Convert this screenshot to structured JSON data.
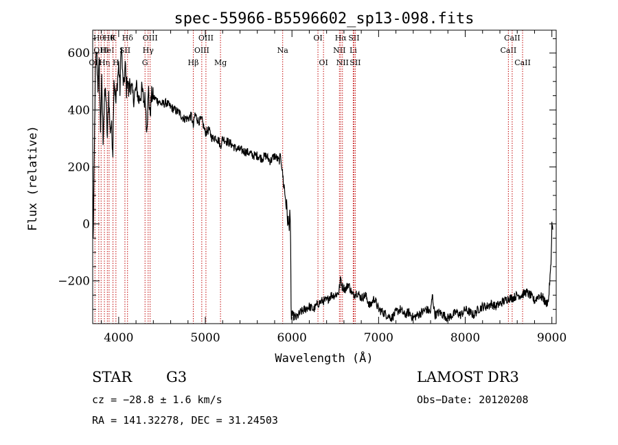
{
  "chart_data": {
    "type": "line",
    "title": "spec-55966-B5596602_sp13-098.fits",
    "xlabel": "Wavelength (Å)",
    "ylabel": "Flux (relative)",
    "xlim": [
      3700,
      9050
    ],
    "ylim": [
      -350,
      680
    ],
    "x_ticks": [
      4000,
      5000,
      6000,
      7000,
      8000,
      9000
    ],
    "y_ticks": [
      -200,
      0,
      200,
      400,
      600
    ],
    "series": [
      {
        "name": "flux",
        "x": [
          3700,
          3705,
          3715,
          3730,
          3745,
          3760,
          3775,
          3790,
          3805,
          3820,
          3835,
          3850,
          3870,
          3885,
          3900,
          3915,
          3933,
          3945,
          3968,
          3985,
          4000,
          4015,
          4030,
          4045,
          4060,
          4075,
          4090,
          4102,
          4115,
          4130,
          4150,
          4170,
          4190,
          4210,
          4230,
          4250,
          4270,
          4290,
          4310,
          4318,
          4330,
          4345,
          4360,
          4380,
          4420,
          4460,
          4500,
          4550,
          4600,
          4650,
          4700,
          4750,
          4800,
          4840,
          4861,
          4880,
          4920,
          4960,
          5000,
          5040,
          5080,
          5120,
          5160,
          5172,
          5200,
          5250,
          5300,
          5350,
          5400,
          5450,
          5500,
          5550,
          5600,
          5650,
          5700,
          5750,
          5800,
          5850,
          5870,
          5890,
          5910,
          5930,
          5950,
          5965,
          5975,
          5980,
          5985,
          5990,
          6000,
          6050,
          6100,
          6150,
          6200,
          6250,
          6300,
          6350,
          6400,
          6450,
          6500,
          6540,
          6563,
          6580,
          6620,
          6650,
          6700,
          6750,
          6800,
          6850,
          6900,
          6950,
          7000,
          7050,
          7100,
          7150,
          7200,
          7250,
          7300,
          7350,
          7400,
          7450,
          7500,
          7550,
          7600,
          7620,
          7650,
          7700,
          7750,
          7800,
          7850,
          7900,
          7950,
          8000,
          8050,
          8100,
          8150,
          8200,
          8250,
          8300,
          8350,
          8400,
          8450,
          8500,
          8550,
          8600,
          8650,
          8700,
          8750,
          8800,
          8850,
          8900,
          8930,
          8960,
          8990,
          9000,
          9010
        ],
        "values": [
          200,
          -60,
          150,
          520,
          610,
          480,
          560,
          330,
          500,
          300,
          430,
          470,
          300,
          460,
          330,
          350,
          260,
          520,
          420,
          500,
          560,
          470,
          640,
          520,
          480,
          560,
          470,
          520,
          460,
          500,
          470,
          440,
          460,
          480,
          430,
          450,
          470,
          430,
          440,
          340,
          370,
          470,
          380,
          450,
          440,
          430,
          420,
          425,
          410,
          400,
          390,
          370,
          370,
          380,
          340,
          385,
          360,
          365,
          320,
          330,
          300,
          305,
          290,
          270,
          300,
          290,
          280,
          265,
          260,
          255,
          250,
          240,
          240,
          230,
          240,
          220,
          240,
          220,
          240,
          180,
          130,
          80,
          20,
          -10,
          50,
          -20,
          -100,
          -310,
          -320,
          -330,
          -310,
          -300,
          -290,
          -300,
          -280,
          -270,
          -270,
          -250,
          -250,
          -240,
          -190,
          -220,
          -230,
          -210,
          -250,
          -240,
          -260,
          -250,
          -290,
          -260,
          -300,
          -310,
          -320,
          -330,
          -310,
          -300,
          -320,
          -310,
          -330,
          -320,
          -310,
          -300,
          -310,
          -250,
          -320,
          -310,
          -320,
          -330,
          -320,
          -310,
          -320,
          -300,
          -310,
          -320,
          -300,
          -290,
          -290,
          -280,
          -290,
          -280,
          -270,
          -260,
          -260,
          -250,
          -250,
          -240,
          -250,
          -270,
          -250,
          -260,
          -280,
          -270,
          -140,
          0,
          -20
        ]
      }
    ],
    "line_markers": [
      {
        "wave": 3726,
        "label": "OII",
        "row": 3
      },
      {
        "wave": 3770,
        "label": "Hθ",
        "row": 1
      },
      {
        "wave": 3797,
        "label": "OIII",
        "row": 2
      },
      {
        "wave": 3835,
        "label": "Hη",
        "row": 3
      },
      {
        "wave": 3869,
        "label": "HeI",
        "row": 2
      },
      {
        "wave": 3889,
        "label": "Hθ",
        "row": 1
      },
      {
        "wave": 3934,
        "label": "K",
        "row": 1
      },
      {
        "wave": 3968,
        "label": "H",
        "row": 3
      },
      {
        "wave": 4072,
        "label": "SII",
        "row": 2
      },
      {
        "wave": 4102,
        "label": "Hδ",
        "row": 1
      },
      {
        "wave": 4304,
        "label": "G",
        "row": 3
      },
      {
        "wave": 4340,
        "label": "Hγ",
        "row": 2
      },
      {
        "wave": 4363,
        "label": "OIII",
        "row": 1
      },
      {
        "wave": 4861,
        "label": "Hβ",
        "row": 3
      },
      {
        "wave": 4959,
        "label": "OIII",
        "row": 2
      },
      {
        "wave": 5007,
        "label": "OIII",
        "row": 1
      },
      {
        "wave": 5175,
        "label": "Mg",
        "row": 3
      },
      {
        "wave": 5893,
        "label": "Na",
        "row": 2
      },
      {
        "wave": 6300,
        "label": "OI",
        "row": 1
      },
      {
        "wave": 6364,
        "label": "OI",
        "row": 3
      },
      {
        "wave": 6548,
        "label": "NII",
        "row": 2
      },
      {
        "wave": 6563,
        "label": "Hα",
        "row": 1
      },
      {
        "wave": 6583,
        "label": "NII",
        "row": 3
      },
      {
        "wave": 6707,
        "label": "Li",
        "row": 2
      },
      {
        "wave": 6716,
        "label": "SII",
        "row": 1
      },
      {
        "wave": 6731,
        "label": "SII",
        "row": 3
      },
      {
        "wave": 8498,
        "label": "CaII",
        "row": 2
      },
      {
        "wave": 8542,
        "label": "CaII",
        "row": 1
      },
      {
        "wave": 8662,
        "label": "CaII",
        "row": 3
      }
    ],
    "colors": {
      "spectrum": "#000000",
      "markers": "#c00000",
      "axes": "#000000"
    }
  },
  "info": {
    "object_type": "STAR",
    "subclass": "G3",
    "survey": "LAMOST DR3",
    "redshift": "cz = −28.8 ± 1.6 km/s",
    "obs_date": "Obs−Date: 20120208",
    "coords": "RA = 141.32278, DEC =  31.24503"
  }
}
